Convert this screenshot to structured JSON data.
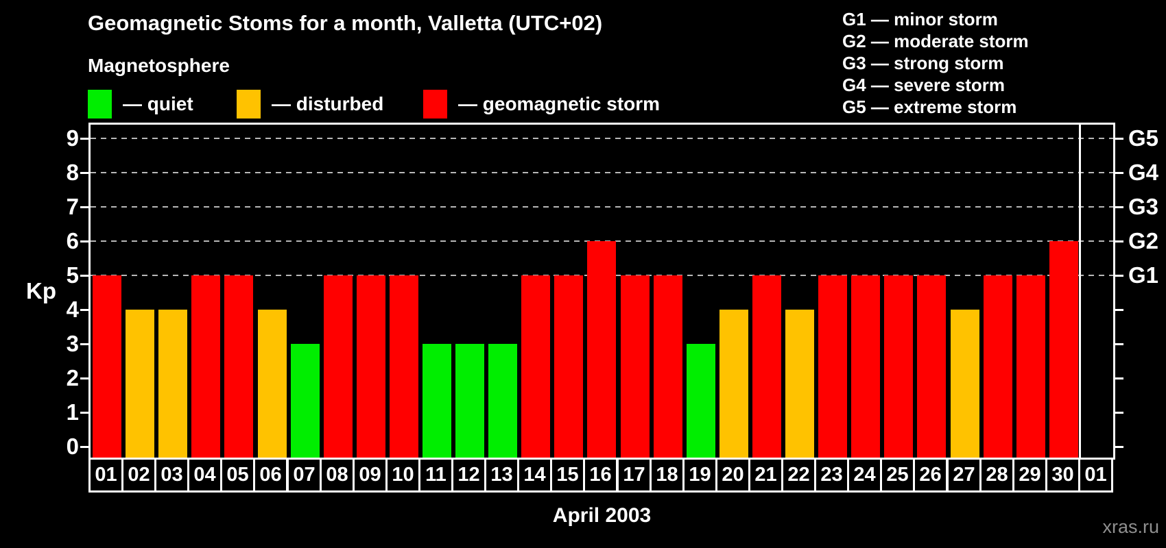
{
  "title": "Geomagnetic Stoms for a month, Valletta (UTC+02)",
  "subtitle": "Magnetosphere",
  "watermark": "xras.ru",
  "colors": {
    "quiet": "#00ee00",
    "disturbed": "#ffc200",
    "storm": "#ff0000",
    "background": "#000000",
    "text": "#ffffff",
    "grid": "#b8b8b8",
    "watermark_color": "#8f8f8f"
  },
  "legend": {
    "items": [
      {
        "state": "quiet",
        "label": "— quiet",
        "x": 128
      },
      {
        "state": "disturbed",
        "label": "— disturbed",
        "x": 345
      },
      {
        "state": "storm",
        "label": "— geomagnetic storm",
        "x": 617
      }
    ]
  },
  "storm_scale": {
    "lines": [
      "G1 — minor storm",
      "G2 — moderate storm",
      "G3 — strong storm",
      "G4 — severe storm",
      "G5 — extreme storm"
    ]
  },
  "chart_data": {
    "type": "bar",
    "title": "Geomagnetic Stoms for a month, Valletta (UTC+02)",
    "xlabel": "April 2003",
    "ylabel": "Kp",
    "ylim": [
      0,
      9.4
    ],
    "yticks": [
      0,
      1,
      2,
      3,
      4,
      5,
      6,
      7,
      8,
      9
    ],
    "grid_at_kp": [
      5,
      6,
      7,
      8,
      9
    ],
    "grid_style": "dashed horizontal",
    "legend_position": "top-left",
    "right_axis_labels": [
      {
        "text": "G1",
        "kp": 5
      },
      {
        "text": "G2",
        "kp": 6
      },
      {
        "text": "G3",
        "kp": 7
      },
      {
        "text": "G4",
        "kp": 8
      },
      {
        "text": "G5",
        "kp": 9
      }
    ],
    "categories": [
      "01",
      "02",
      "03",
      "04",
      "05",
      "06",
      "07",
      "08",
      "09",
      "10",
      "11",
      "12",
      "13",
      "14",
      "15",
      "16",
      "17",
      "18",
      "19",
      "20",
      "21",
      "22",
      "23",
      "24",
      "25",
      "26",
      "27",
      "28",
      "29",
      "30",
      "01"
    ],
    "values": [
      5,
      4,
      4,
      5,
      5,
      4,
      3,
      5,
      5,
      5,
      3,
      3,
      3,
      5,
      5,
      6,
      5,
      5,
      3,
      4,
      5,
      4,
      5,
      5,
      5,
      5,
      4,
      5,
      5,
      6,
      null
    ],
    "states": [
      "storm",
      "disturbed",
      "disturbed",
      "storm",
      "storm",
      "disturbed",
      "quiet",
      "storm",
      "storm",
      "storm",
      "quiet",
      "quiet",
      "quiet",
      "storm",
      "storm",
      "storm",
      "storm",
      "storm",
      "quiet",
      "disturbed",
      "storm",
      "disturbed",
      "storm",
      "storm",
      "storm",
      "storm",
      "disturbed",
      "storm",
      "storm",
      "storm",
      null
    ]
  }
}
